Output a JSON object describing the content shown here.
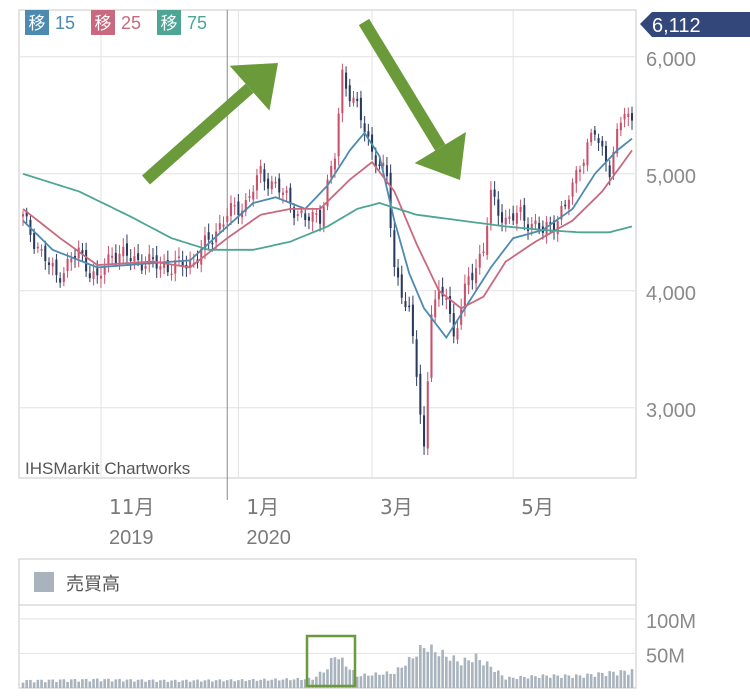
{
  "chart_data": {
    "type": "candlestick",
    "source_label": "IHSMarkit Chartworks",
    "last_price_label": "6,112",
    "y_ticks": [
      {
        "value": 6000,
        "label": "6,000"
      },
      {
        "value": 5000,
        "label": "5,000"
      },
      {
        "value": 4000,
        "label": "4,000"
      },
      {
        "value": 3000,
        "label": "3,000"
      }
    ],
    "ylim": [
      2400,
      6400
    ],
    "x_ticks": [
      {
        "index": 21,
        "month": "11月",
        "year": "2019"
      },
      {
        "index": 58,
        "month": "1月",
        "year": "2020"
      },
      {
        "index": 94,
        "month": "3月",
        "year": ""
      },
      {
        "index": 132,
        "month": "5月",
        "year": ""
      }
    ],
    "x_count": 165,
    "year_boundary_index": 55,
    "legend": [
      {
        "badge": "移",
        "period": "15",
        "color": "#4d8ab0"
      },
      {
        "badge": "移",
        "period": "25",
        "color": "#c8697f"
      },
      {
        "badge": "移",
        "period": "75",
        "color": "#4ea596"
      }
    ],
    "up_color": "#c8506a",
    "down_color": "#2a3a5e",
    "candle_anchors": [
      [
        0,
        4620
      ],
      [
        5,
        4320
      ],
      [
        9,
        4120
      ],
      [
        15,
        4330
      ],
      [
        20,
        4080
      ],
      [
        24,
        4330
      ],
      [
        32,
        4250
      ],
      [
        40,
        4200
      ],
      [
        46,
        4250
      ],
      [
        55,
        4650
      ],
      [
        60,
        4750
      ],
      [
        64,
        5000
      ],
      [
        68,
        4900
      ],
      [
        72,
        4750
      ],
      [
        76,
        4600
      ],
      [
        80,
        4650
      ],
      [
        84,
        5150
      ],
      [
        86,
        5850
      ],
      [
        90,
        5550
      ],
      [
        94,
        5200
      ],
      [
        98,
        4950
      ],
      [
        100,
        4200
      ],
      [
        104,
        3800
      ],
      [
        106,
        3300
      ],
      [
        108,
        2650
      ],
      [
        110,
        3850
      ],
      [
        114,
        4000
      ],
      [
        116,
        3600
      ],
      [
        120,
        4100
      ],
      [
        124,
        4350
      ],
      [
        126,
        4800
      ],
      [
        130,
        4600
      ],
      [
        134,
        4650
      ],
      [
        140,
        4500
      ],
      [
        146,
        4700
      ],
      [
        150,
        5100
      ],
      [
        154,
        5350
      ],
      [
        158,
        5050
      ],
      [
        162,
        5550
      ],
      [
        164,
        5450
      ]
    ],
    "ma_lines": [
      {
        "period": 15,
        "color": "#4d8ab0",
        "anchors": [
          [
            0,
            4600
          ],
          [
            8,
            4350
          ],
          [
            20,
            4200
          ],
          [
            32,
            4230
          ],
          [
            45,
            4260
          ],
          [
            55,
            4550
          ],
          [
            62,
            4750
          ],
          [
            68,
            4800
          ],
          [
            76,
            4700
          ],
          [
            82,
            4900
          ],
          [
            88,
            5200
          ],
          [
            92,
            5350
          ],
          [
            96,
            5150
          ],
          [
            100,
            4600
          ],
          [
            104,
            4150
          ],
          [
            108,
            3850
          ],
          [
            114,
            3600
          ],
          [
            120,
            3900
          ],
          [
            126,
            4200
          ],
          [
            132,
            4450
          ],
          [
            140,
            4520
          ],
          [
            148,
            4700
          ],
          [
            154,
            5000
          ],
          [
            160,
            5200
          ],
          [
            164,
            5300
          ]
        ]
      },
      {
        "period": 25,
        "color": "#c8697f",
        "anchors": [
          [
            0,
            4700
          ],
          [
            10,
            4450
          ],
          [
            20,
            4220
          ],
          [
            35,
            4250
          ],
          [
            45,
            4200
          ],
          [
            55,
            4450
          ],
          [
            64,
            4650
          ],
          [
            72,
            4700
          ],
          [
            80,
            4700
          ],
          [
            88,
            4950
          ],
          [
            94,
            5100
          ],
          [
            100,
            4850
          ],
          [
            106,
            4400
          ],
          [
            112,
            4000
          ],
          [
            118,
            3850
          ],
          [
            124,
            3950
          ],
          [
            130,
            4250
          ],
          [
            138,
            4420
          ],
          [
            148,
            4600
          ],
          [
            156,
            4850
          ],
          [
            164,
            5200
          ]
        ]
      },
      {
        "period": 75,
        "color": "#4ea596",
        "anchors": [
          [
            0,
            5000
          ],
          [
            15,
            4850
          ],
          [
            28,
            4650
          ],
          [
            40,
            4450
          ],
          [
            50,
            4350
          ],
          [
            62,
            4350
          ],
          [
            72,
            4420
          ],
          [
            82,
            4550
          ],
          [
            90,
            4700
          ],
          [
            96,
            4750
          ],
          [
            106,
            4650
          ],
          [
            118,
            4600
          ],
          [
            130,
            4550
          ],
          [
            140,
            4520
          ],
          [
            150,
            4500
          ],
          [
            158,
            4500
          ],
          [
            164,
            4550
          ]
        ]
      }
    ],
    "volume": {
      "label": "売買高",
      "y_ticks": [
        {
          "value": 100,
          "label": "100M"
        },
        {
          "value": 50,
          "label": "50M"
        }
      ],
      "ylim": [
        0,
        120
      ],
      "color": "#a9b3bd",
      "anchors": [
        [
          0,
          12
        ],
        [
          20,
          14
        ],
        [
          40,
          12
        ],
        [
          60,
          13
        ],
        [
          78,
          15
        ],
        [
          82,
          32
        ],
        [
          84,
          55
        ],
        [
          86,
          44
        ],
        [
          90,
          20
        ],
        [
          100,
          25
        ],
        [
          104,
          45
        ],
        [
          108,
          68
        ],
        [
          112,
          58
        ],
        [
          118,
          42
        ],
        [
          122,
          50
        ],
        [
          126,
          35
        ],
        [
          130,
          16
        ],
        [
          140,
          20
        ],
        [
          150,
          20
        ],
        [
          158,
          25
        ],
        [
          164,
          28
        ]
      ]
    },
    "annotations": [
      {
        "type": "arrow",
        "direction": "up-right",
        "color": "#6a9a3a"
      },
      {
        "type": "arrow",
        "direction": "down-right",
        "color": "#6a9a3a"
      },
      {
        "type": "highlight-box",
        "target": "volume spike",
        "color": "#6a9a3a"
      }
    ]
  }
}
